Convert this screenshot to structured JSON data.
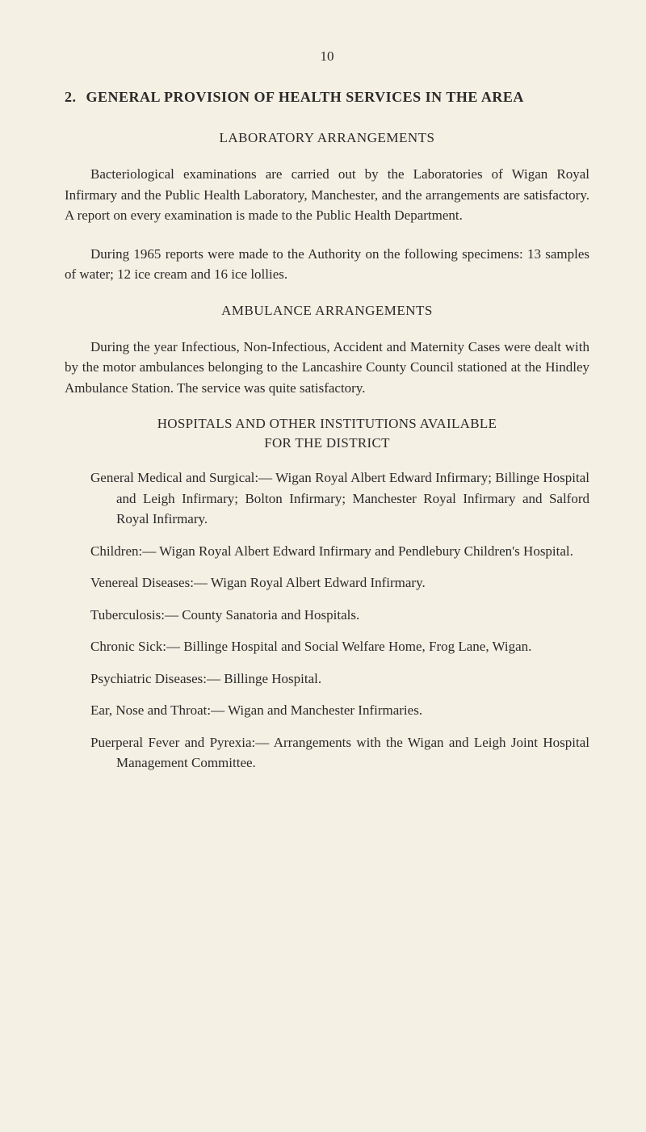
{
  "pageNumber": "10",
  "sectionNumber": "2.",
  "sectionTitle": "GENERAL PROVISION OF HEALTH SERVICES IN THE AREA",
  "lab": {
    "title": "LABORATORY ARRANGEMENTS",
    "para1": "Bacteriological examinations are carried out by the Laboratories of Wigan Royal Infirmary and the Public Health Laboratory, Manchester, and the arrangements are satisfactory. A report on every examination is made to the Public Health Department.",
    "para2": "During 1965 reports were made to the Authority on the following specimens: 13 samples of water; 12 ice cream and 16 ice lollies."
  },
  "ambulance": {
    "title": "AMBULANCE ARRANGEMENTS",
    "para1": "During the year Infectious, Non-Infectious, Accident and Maternity Cases were dealt with by the motor ambulances belonging to the Lancashire County Council stationed at the Hindley Ambulance Station. The service was quite satisfactory."
  },
  "hospitals": {
    "header1": "HOSPITALS AND OTHER INSTITUTIONS AVAILABLE",
    "header2": "FOR THE DISTRICT",
    "items": [
      "General Medical and Surgical:— Wigan Royal Albert Edward Infirmary; Billinge Hospital and Leigh Infirmary; Bolton Infirmary; Manchester Royal Infirmary and Salford Royal Infirmary.",
      "Children:— Wigan Royal Albert Edward Infirmary and Pendlebury Children's Hospital.",
      "Venereal Diseases:— Wigan Royal Albert Edward Infirmary.",
      "Tuberculosis:— County Sanatoria and Hospitals.",
      "Chronic Sick:— Billinge Hospital and Social Welfare Home, Frog Lane, Wigan.",
      "Psychiatric Diseases:— Billinge Hospital.",
      "Ear, Nose and Throat:— Wigan and Manchester Infirmaries.",
      "Puerperal Fever and Pyrexia:— Arrangements with the Wigan and Leigh Joint Hospital Management Committee."
    ]
  }
}
